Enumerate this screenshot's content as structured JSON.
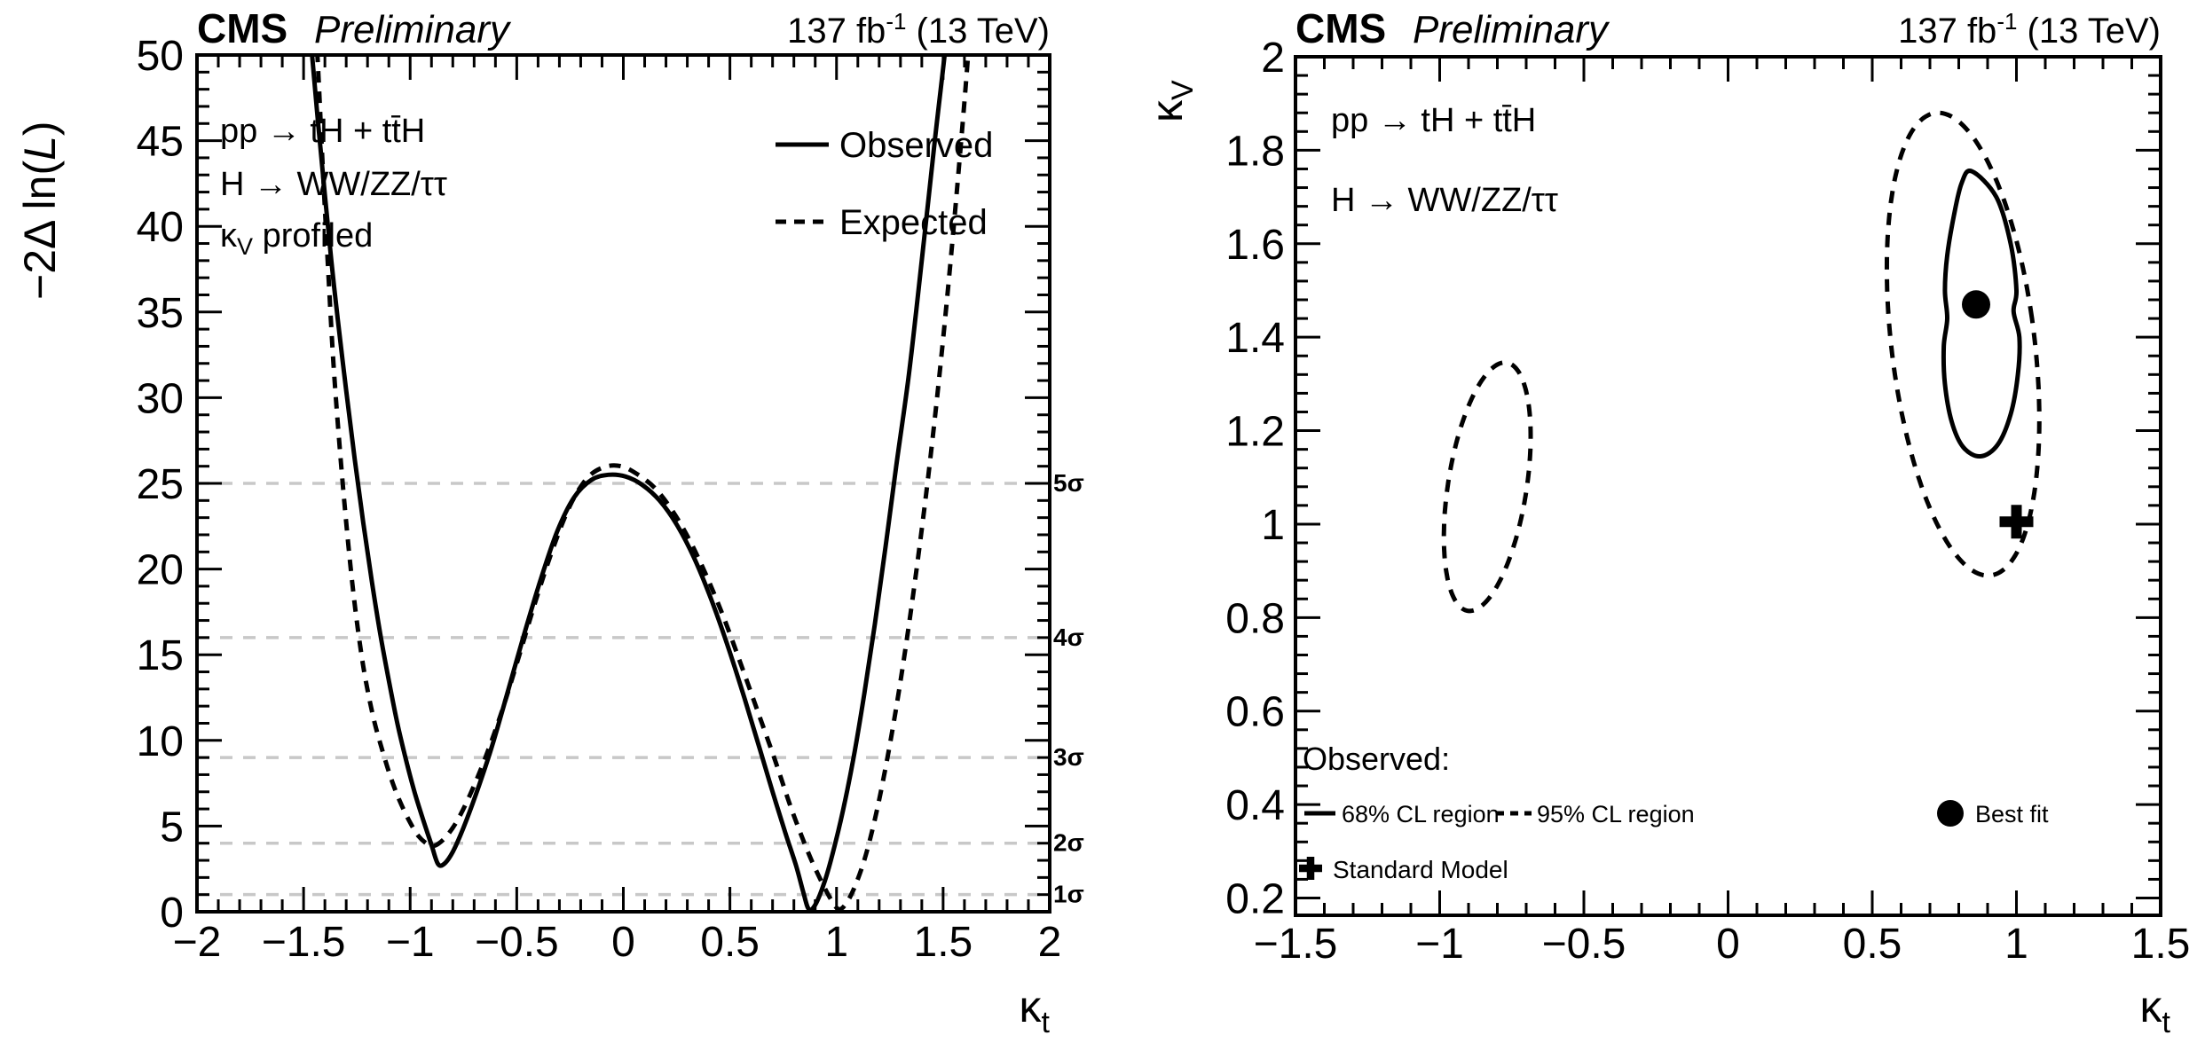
{
  "page": {
    "background": "#ffffff",
    "line_color": "#000000",
    "sigma_line_color": "#c8c8c8",
    "sigma_label_color": "#b9b9b9"
  },
  "left_plot": {
    "header": {
      "experiment": "CMS",
      "status": "Preliminary",
      "lumi_prefix": "137 fb",
      "lumi_sup": "-1",
      "lumi_suffix": " (13 TeV)"
    },
    "y_title": {
      "prefix": "−2Δ ln(",
      "L": "L",
      "suffix": ")"
    },
    "x_title": {
      "kappa": "κ",
      "sub": "t"
    },
    "annotations": {
      "process": "pp → tH + tt̄H",
      "decay": "H → WW/ZZ/ττ",
      "profiled_kappa": "κ",
      "profiled_sub": "V",
      "profiled_rest": " profiled"
    },
    "legend": [
      {
        "label": "Observed",
        "style": "solid"
      },
      {
        "label": "Expected",
        "style": "dashed"
      }
    ]
  },
  "right_plot": {
    "header": {
      "experiment": "CMS",
      "status": "Preliminary",
      "lumi_prefix": "137 fb",
      "lumi_sup": "-1",
      "lumi_suffix": " (13 TeV)"
    },
    "y_title": {
      "kappa": "κ",
      "sub": "V"
    },
    "x_title": {
      "kappa": "κ",
      "sub": "t"
    },
    "annotations": {
      "process": "pp → tH + tt̄H",
      "decay": "H → WW/ZZ/ττ"
    },
    "legend": {
      "heading": "Observed:",
      "cl68": "68% CL region",
      "cl95": "95% CL region",
      "best_fit": "Best fit",
      "sm": "Standard Model"
    }
  },
  "chart_data": [
    {
      "id": "likelihood-scan",
      "type": "line",
      "title": "CMS Preliminary",
      "lumi": "137 fb-1 (13 TeV)",
      "xlabel": "kappa_t",
      "ylabel": "-2 Delta ln(L)",
      "xlim": [
        -2,
        2
      ],
      "ylim": [
        0,
        50
      ],
      "x_ticks": [
        {
          "v": -2,
          "label": "−2"
        },
        {
          "v": -1.5,
          "label": "−1.5"
        },
        {
          "v": -1,
          "label": "−1"
        },
        {
          "v": -0.5,
          "label": "−0.5"
        },
        {
          "v": 0,
          "label": "0"
        },
        {
          "v": 0.5,
          "label": "0.5"
        },
        {
          "v": 1,
          "label": "1"
        },
        {
          "v": 1.5,
          "label": "1.5"
        },
        {
          "v": 2,
          "label": "2"
        }
      ],
      "y_ticks": [
        {
          "v": 0,
          "label": "0"
        },
        {
          "v": 5,
          "label": "5"
        },
        {
          "v": 10,
          "label": "10"
        },
        {
          "v": 15,
          "label": "15"
        },
        {
          "v": 20,
          "label": "20"
        },
        {
          "v": 25,
          "label": "25"
        },
        {
          "v": 30,
          "label": "30"
        },
        {
          "v": 35,
          "label": "35"
        },
        {
          "v": 40,
          "label": "40"
        },
        {
          "v": 45,
          "label": "45"
        },
        {
          "v": 50,
          "label": "50"
        }
      ],
      "x_minor_step": 0.1,
      "y_minor_step": 1,
      "sigma_lines": [
        {
          "value": 1,
          "label": "1σ"
        },
        {
          "value": 4,
          "label": "2σ"
        },
        {
          "value": 9,
          "label": "3σ"
        },
        {
          "value": 16,
          "label": "4σ"
        },
        {
          "value": 25,
          "label": "5σ"
        }
      ],
      "series": [
        {
          "name": "Observed",
          "style": "solid",
          "points": [
            [
              -1.49,
              55
            ],
            [
              -1.46,
              50
            ],
            [
              -1.43,
              45.8
            ],
            [
              -1.4,
              41.8
            ],
            [
              -1.37,
              38
            ],
            [
              -1.34,
              34.6
            ],
            [
              -1.3,
              30.4
            ],
            [
              -1.26,
              26.4
            ],
            [
              -1.22,
              22.7
            ],
            [
              -1.18,
              19.3
            ],
            [
              -1.14,
              16.2
            ],
            [
              -1.1,
              13.5
            ],
            [
              -1.06,
              11
            ],
            [
              -1.02,
              8.9
            ],
            [
              -0.98,
              7
            ],
            [
              -0.94,
              5.4
            ],
            [
              -0.9,
              3.9
            ],
            [
              -0.87,
              2.8
            ],
            [
              -0.84,
              2.8
            ],
            [
              -0.8,
              3.5
            ],
            [
              -0.75,
              4.9
            ],
            [
              -0.69,
              6.9
            ],
            [
              -0.62,
              9.5
            ],
            [
              -0.55,
              12.5
            ],
            [
              -0.47,
              16
            ],
            [
              -0.39,
              19.3
            ],
            [
              -0.31,
              22.2
            ],
            [
              -0.23,
              24.2
            ],
            [
              -0.15,
              25.2
            ],
            [
              -0.07,
              25.5
            ],
            [
              0.01,
              25.4
            ],
            [
              0.09,
              24.9
            ],
            [
              0.17,
              24
            ],
            [
              0.25,
              22.6
            ],
            [
              0.33,
              20.7
            ],
            [
              0.41,
              18.3
            ],
            [
              0.49,
              15.5
            ],
            [
              0.57,
              12.4
            ],
            [
              0.64,
              9.5
            ],
            [
              0.7,
              7
            ],
            [
              0.76,
              4.6
            ],
            [
              0.81,
              2.7
            ],
            [
              0.845,
              1.1
            ],
            [
              0.87,
              0.15
            ],
            [
              0.9,
              0.4
            ],
            [
              0.94,
              1.6
            ],
            [
              0.98,
              3.3
            ],
            [
              1.03,
              5.9
            ],
            [
              1.08,
              9
            ],
            [
              1.13,
              12.7
            ],
            [
              1.18,
              16.8
            ],
            [
              1.23,
              21.3
            ],
            [
              1.28,
              26
            ],
            [
              1.34,
              31.4
            ],
            [
              1.4,
              38
            ],
            [
              1.46,
              44.9
            ],
            [
              1.52,
              51.5
            ],
            [
              1.55,
              56
            ]
          ]
        },
        {
          "name": "Expected",
          "style": "dashed",
          "points": [
            [
              -1.46,
              55
            ],
            [
              -1.435,
              50
            ],
            [
              -1.41,
              43.5
            ],
            [
              -1.385,
              37.5
            ],
            [
              -1.36,
              32
            ],
            [
              -1.33,
              27
            ],
            [
              -1.3,
              22.7
            ],
            [
              -1.27,
              19
            ],
            [
              -1.24,
              16
            ],
            [
              -1.21,
              13.6
            ],
            [
              -1.17,
              11.2
            ],
            [
              -1.13,
              9.4
            ],
            [
              -1.09,
              7.8
            ],
            [
              -1.05,
              6.5
            ],
            [
              -1,
              5.2
            ],
            [
              -0.96,
              4.4
            ],
            [
              -0.92,
              3.95
            ],
            [
              -0.895,
              3.85
            ],
            [
              -0.87,
              3.95
            ],
            [
              -0.83,
              4.4
            ],
            [
              -0.78,
              5.3
            ],
            [
              -0.72,
              6.8
            ],
            [
              -0.65,
              8.9
            ],
            [
              -0.57,
              11.7
            ],
            [
              -0.49,
              14.9
            ],
            [
              -0.41,
              18.2
            ],
            [
              -0.33,
              21.2
            ],
            [
              -0.25,
              23.7
            ],
            [
              -0.17,
              25.3
            ],
            [
              -0.09,
              25.95
            ],
            [
              -0.01,
              26
            ],
            [
              0.07,
              25.5
            ],
            [
              0.15,
              24.7
            ],
            [
              0.23,
              23.4
            ],
            [
              0.31,
              21.7
            ],
            [
              0.39,
              19.6
            ],
            [
              0.47,
              17.2
            ],
            [
              0.55,
              14.5
            ],
            [
              0.63,
              11.7
            ],
            [
              0.71,
              8.9
            ],
            [
              0.78,
              6.3
            ],
            [
              0.84,
              4.3
            ],
            [
              0.89,
              2.8
            ],
            [
              0.94,
              1.5
            ],
            [
              0.98,
              0.6
            ],
            [
              1.01,
              0.15
            ],
            [
              1.04,
              0.4
            ],
            [
              1.08,
              1.3
            ],
            [
              1.13,
              3
            ],
            [
              1.18,
              5.4
            ],
            [
              1.23,
              8.4
            ],
            [
              1.28,
              11.9
            ],
            [
              1.33,
              15.9
            ],
            [
              1.38,
              20.4
            ],
            [
              1.43,
              25.4
            ],
            [
              1.48,
              31
            ],
            [
              1.53,
              37.3
            ],
            [
              1.58,
              44.3
            ],
            [
              1.62,
              50.5
            ],
            [
              1.64,
              55
            ]
          ]
        }
      ]
    },
    {
      "id": "cl-regions",
      "type": "contour",
      "xlabel": "kappa_t",
      "ylabel": "kappa_V",
      "xlim": [
        -1.5,
        1.5
      ],
      "ylim": [
        0.163,
        2.0
      ],
      "x_ticks": [
        {
          "v": -1.5,
          "label": "−1.5"
        },
        {
          "v": -1,
          "label": "−1"
        },
        {
          "v": -0.5,
          "label": "−0.5"
        },
        {
          "v": 0,
          "label": "0"
        },
        {
          "v": 0.5,
          "label": "0.5"
        },
        {
          "v": 1,
          "label": "1"
        },
        {
          "v": 1.5,
          "label": "1.5"
        }
      ],
      "y_ticks": [
        {
          "v": 0.2,
          "label": "0.2"
        },
        {
          "v": 0.4,
          "label": "0.4"
        },
        {
          "v": 0.6,
          "label": "0.6"
        },
        {
          "v": 0.8,
          "label": "0.8"
        },
        {
          "v": 1,
          "label": "1"
        },
        {
          "v": 1.2,
          "label": "1.2"
        },
        {
          "v": 1.4,
          "label": "1.4"
        },
        {
          "v": 1.6,
          "label": "1.6"
        },
        {
          "v": 1.8,
          "label": "1.8"
        },
        {
          "v": 2,
          "label": "2"
        }
      ],
      "x_minor_step": 0.1,
      "y_minor_step": 0.04,
      "contours": [
        {
          "name": "95% CL region (right branch)",
          "level": "95%",
          "style": "dashed",
          "shape": "ellipse",
          "center": [
            0.815,
            1.385
          ],
          "semi_major": 0.505,
          "semi_minor": 0.245,
          "tilt_deg": 13
        },
        {
          "name": "95% CL region (left branch)",
          "level": "95%",
          "style": "dashed",
          "shape": "ellipse",
          "center": [
            -0.835,
            1.08
          ],
          "semi_major": 0.275,
          "semi_minor": 0.133,
          "tilt_deg": -17
        },
        {
          "name": "68% CL region",
          "level": "68%",
          "style": "solid",
          "shape": "polygon",
          "points": [
            [
              0.845,
              1.755
            ],
            [
              0.93,
              1.7
            ],
            [
              0.98,
              1.6
            ],
            [
              1.0,
              1.5
            ],
            [
              0.99,
              1.455
            ],
            [
              1.01,
              1.4
            ],
            [
              1.005,
              1.32
            ],
            [
              0.98,
              1.235
            ],
            [
              0.935,
              1.17
            ],
            [
              0.875,
              1.145
            ],
            [
              0.815,
              1.165
            ],
            [
              0.775,
              1.22
            ],
            [
              0.752,
              1.3
            ],
            [
              0.748,
              1.38
            ],
            [
              0.76,
              1.44
            ],
            [
              0.752,
              1.5
            ],
            [
              0.76,
              1.575
            ],
            [
              0.783,
              1.66
            ],
            [
              0.81,
              1.73
            ]
          ]
        }
      ],
      "best_fit": {
        "kt": 0.86,
        "kv": 1.47
      },
      "standard_model": {
        "kt": 1.0,
        "kv": 1.005
      }
    }
  ]
}
